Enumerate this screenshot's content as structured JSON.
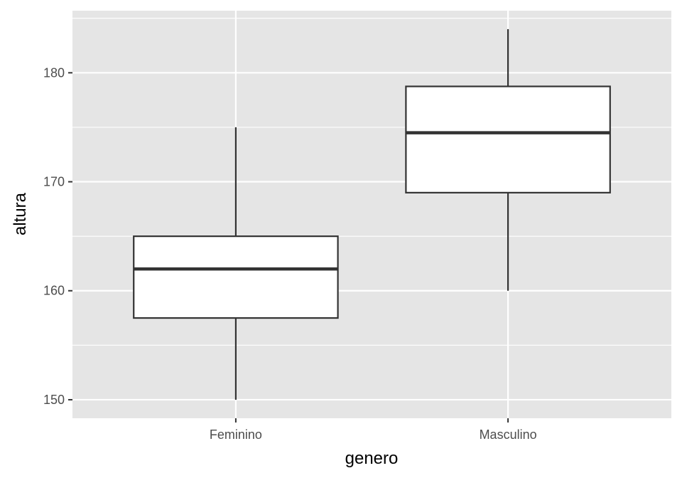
{
  "chart_data": {
    "type": "boxplot",
    "title": "",
    "xlabel": "genero",
    "ylabel": "altura",
    "categories": [
      "Feminino",
      "Masculino"
    ],
    "boxes": [
      {
        "category": "Feminino",
        "whisker_low": 150,
        "q1": 157.5,
        "median": 162,
        "q3": 165,
        "whisker_high": 175
      },
      {
        "category": "Masculino",
        "whisker_low": 160,
        "q1": 169,
        "median": 174.5,
        "q3": 178.75,
        "whisker_high": 184
      }
    ],
    "y_ticks": [
      150,
      160,
      170,
      180
    ],
    "ylim": [
      148.3,
      185.7
    ],
    "grid": true,
    "colors": {
      "panel_background": "#e5e5e5",
      "grid": "#ffffff",
      "box_fill": "#ffffff",
      "box_line": "#333333",
      "tick_mark": "#333333"
    }
  }
}
